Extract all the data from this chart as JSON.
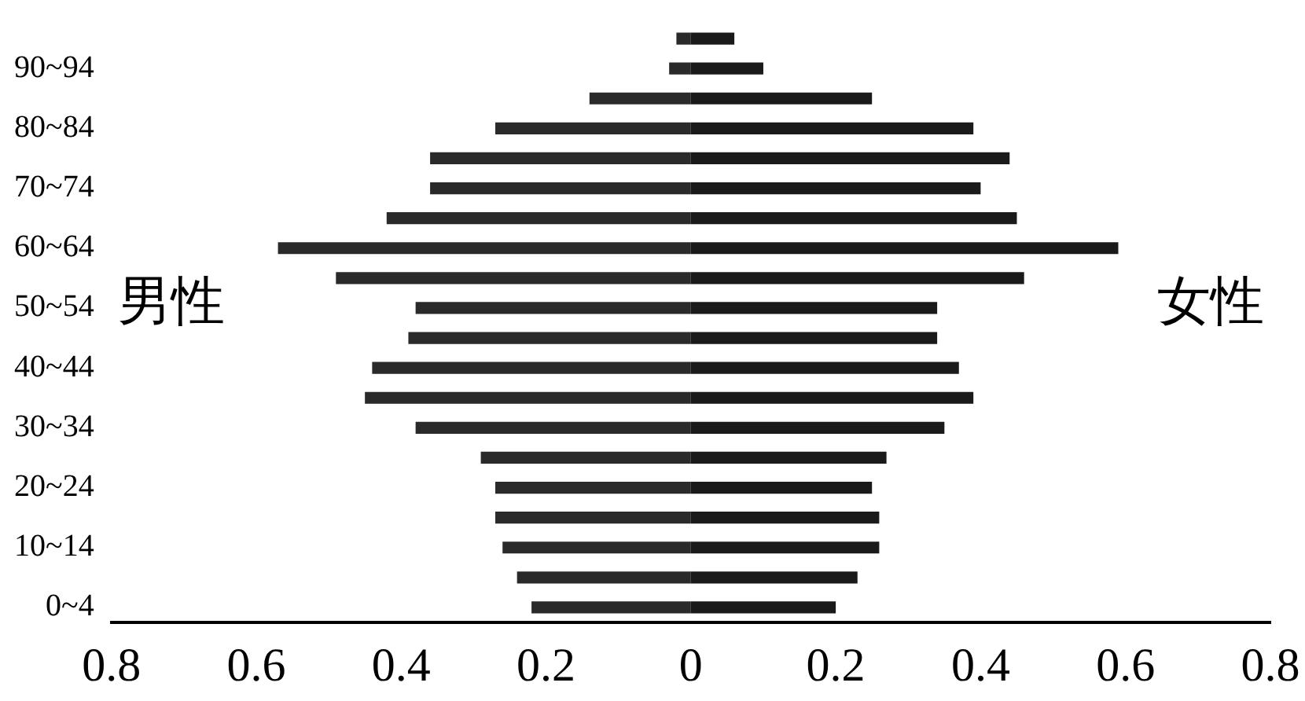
{
  "chart_data": {
    "type": "bar",
    "orientation": "horizontal",
    "stacked": true,
    "categories": [
      null,
      "90~94",
      null,
      "80~84",
      null,
      "70~74",
      null,
      "60~64",
      null,
      "50~54",
      null,
      "40~44",
      null,
      "30~34",
      null,
      "20~24",
      null,
      "10~14",
      null,
      "0~4"
    ],
    "series": [
      {
        "name": "男性",
        "color": "#2a2a2a",
        "values": [
          -0.02,
          -0.03,
          -0.14,
          -0.27,
          -0.36,
          -0.36,
          -0.42,
          -0.57,
          -0.49,
          -0.38,
          -0.39,
          -0.44,
          -0.45,
          -0.38,
          -0.29,
          -0.27,
          -0.27,
          -0.26,
          -0.24,
          -0.22
        ]
      },
      {
        "name": "女性",
        "color": "#1a1a1a",
        "values": [
          0.06,
          0.1,
          0.25,
          0.39,
          0.44,
          0.4,
          0.45,
          0.59,
          0.46,
          0.34,
          0.34,
          0.37,
          0.39,
          0.35,
          0.27,
          0.25,
          0.26,
          0.26,
          0.23,
          0.2
        ]
      }
    ],
    "xlim": [
      -0.8,
      0.8
    ],
    "xticks": [
      {
        "value": -0.8,
        "label": "0.8"
      },
      {
        "value": -0.6,
        "label": "0.6"
      },
      {
        "value": -0.4,
        "label": "0.4"
      },
      {
        "value": -0.2,
        "label": "0.2"
      },
      0,
      0.2,
      0.4,
      0.6,
      0.8
    ],
    "grid": false,
    "legend": false
  }
}
